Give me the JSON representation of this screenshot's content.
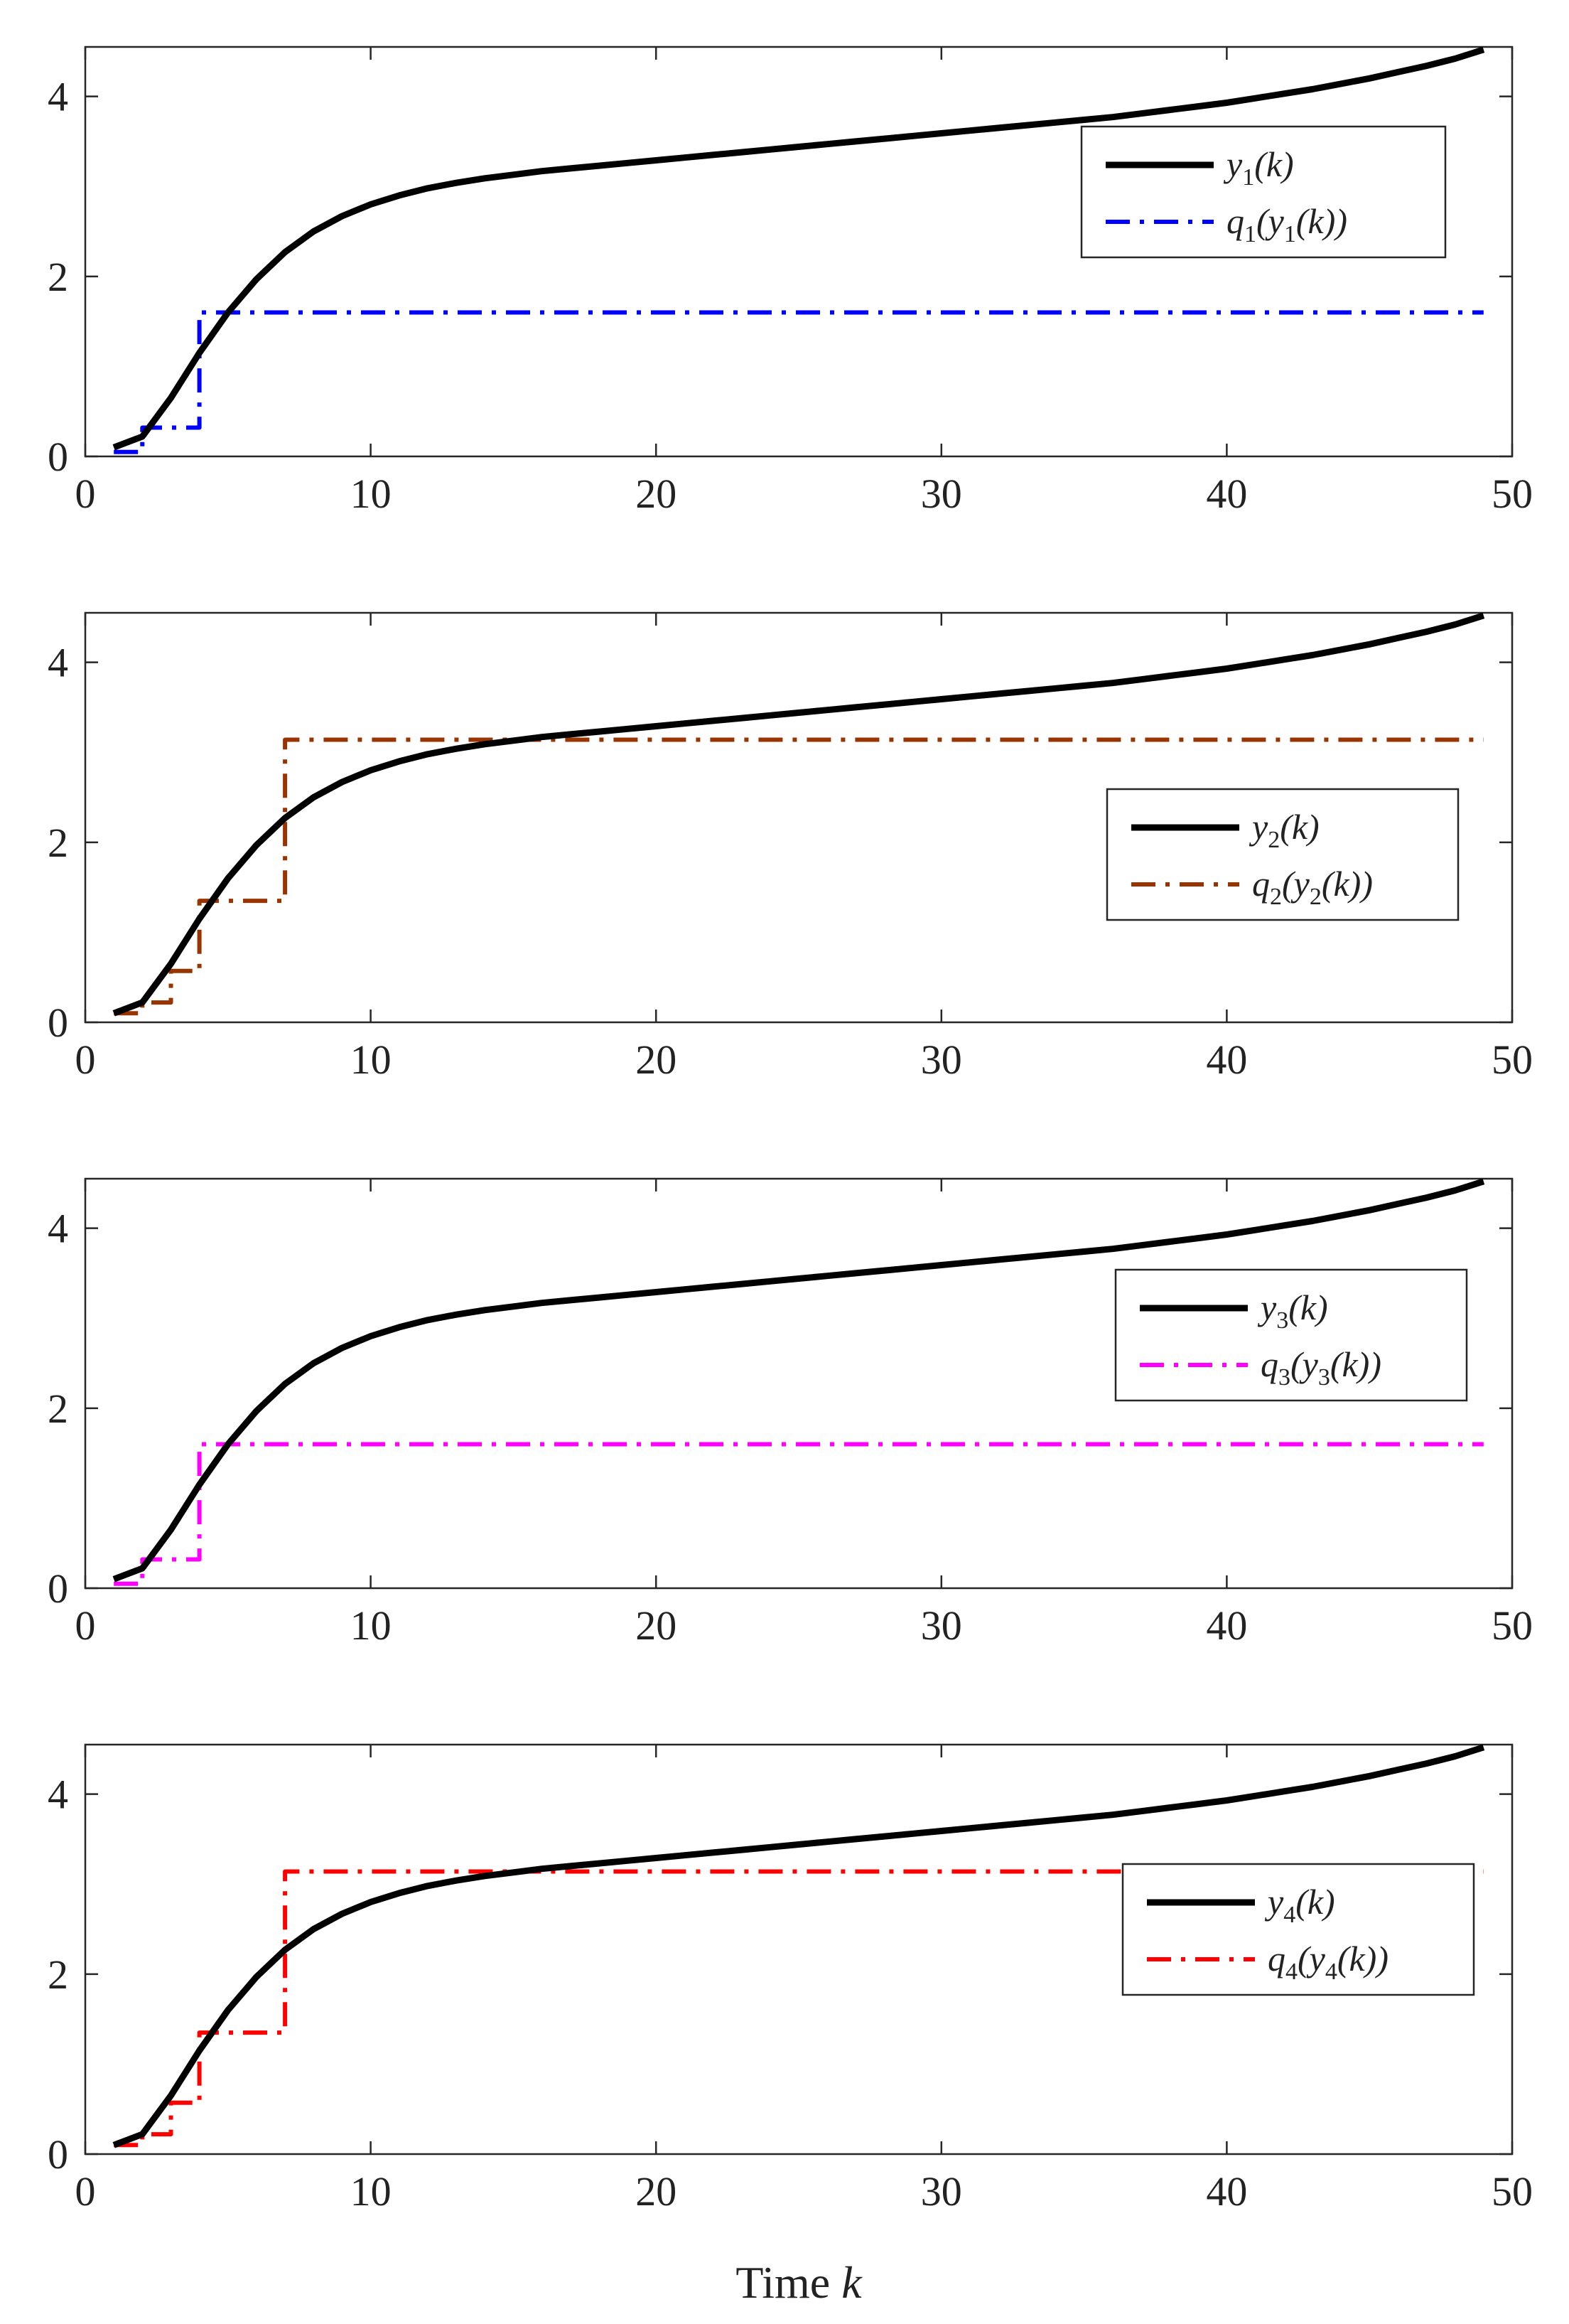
{
  "chart_data": [
    {
      "type": "line",
      "title": "",
      "xlabel": "",
      "ylabel": "",
      "xlim": [
        0,
        50
      ],
      "ylim": [
        0,
        4.55
      ],
      "xticks": [
        "0",
        "10",
        "20",
        "30",
        "40",
        "50"
      ],
      "yticks": [
        "0",
        "2",
        "4"
      ],
      "legend_position": "top-right",
      "series": [
        {
          "name": "y1(k)",
          "color": "#000000",
          "style": "solid",
          "x": [
            1,
            2,
            3,
            4,
            5,
            6,
            7,
            8,
            9,
            10,
            11,
            12,
            13,
            14,
            15,
            16,
            17,
            18,
            19,
            20,
            21,
            22,
            23,
            24,
            25,
            26,
            27,
            28,
            29,
            30,
            31,
            32,
            33,
            34,
            35,
            36,
            37,
            38,
            39,
            40,
            41,
            42,
            43,
            44,
            45,
            46,
            47,
            48,
            49
          ],
          "values": [
            0.1,
            0.22,
            0.65,
            1.15,
            1.6,
            1.97,
            2.27,
            2.5,
            2.67,
            2.8,
            2.9,
            2.98,
            3.04,
            3.09,
            3.13,
            3.17,
            3.2,
            3.23,
            3.26,
            3.29,
            3.32,
            3.35,
            3.38,
            3.41,
            3.44,
            3.47,
            3.5,
            3.53,
            3.56,
            3.59,
            3.62,
            3.65,
            3.68,
            3.71,
            3.74,
            3.77,
            3.81,
            3.85,
            3.89,
            3.93,
            3.98,
            4.03,
            4.08,
            4.14,
            4.2,
            4.27,
            4.34,
            4.42,
            4.52
          ]
        },
        {
          "name": "q1(y1(k))",
          "color": "#0000ff",
          "style": "dashdot",
          "x": [
            1,
            2,
            2,
            4,
            4,
            49
          ],
          "values": [
            0.05,
            0.05,
            0.32,
            0.32,
            1.6,
            1.6
          ]
        }
      ],
      "legend": [
        {
          "label": "y1(k)",
          "base": "y",
          "sub": "1",
          "rest": "(k)"
        },
        {
          "label": "q1(y1(k))",
          "base": "q",
          "sub": "1",
          "mid": "(y",
          "sub2": "1",
          "rest": "(k))"
        }
      ]
    },
    {
      "type": "line",
      "title": "",
      "xlabel": "",
      "ylabel": "",
      "xlim": [
        0,
        50
      ],
      "ylim": [
        0,
        4.55
      ],
      "xticks": [
        "0",
        "10",
        "20",
        "30",
        "40",
        "50"
      ],
      "yticks": [
        "0",
        "2",
        "4"
      ],
      "legend_position": "center-right",
      "series": [
        {
          "name": "y2(k)",
          "color": "#000000",
          "style": "solid",
          "x": [
            1,
            2,
            3,
            4,
            5,
            6,
            7,
            8,
            9,
            10,
            11,
            12,
            13,
            14,
            15,
            16,
            17,
            18,
            19,
            20,
            21,
            22,
            23,
            24,
            25,
            26,
            27,
            28,
            29,
            30,
            31,
            32,
            33,
            34,
            35,
            36,
            37,
            38,
            39,
            40,
            41,
            42,
            43,
            44,
            45,
            46,
            47,
            48,
            49
          ],
          "values": [
            0.1,
            0.22,
            0.65,
            1.15,
            1.6,
            1.97,
            2.27,
            2.5,
            2.67,
            2.8,
            2.9,
            2.98,
            3.04,
            3.09,
            3.13,
            3.17,
            3.2,
            3.23,
            3.26,
            3.29,
            3.32,
            3.35,
            3.38,
            3.41,
            3.44,
            3.47,
            3.5,
            3.53,
            3.56,
            3.59,
            3.62,
            3.65,
            3.68,
            3.71,
            3.74,
            3.77,
            3.81,
            3.85,
            3.89,
            3.93,
            3.98,
            4.03,
            4.08,
            4.14,
            4.2,
            4.27,
            4.34,
            4.42,
            4.52
          ]
        },
        {
          "name": "q2(y2(k))",
          "color": "#993300",
          "style": "dashdot",
          "x": [
            1,
            2,
            2,
            3,
            3,
            4,
            4,
            7,
            7,
            49
          ],
          "values": [
            0.1,
            0.1,
            0.22,
            0.22,
            0.57,
            0.57,
            1.35,
            1.35,
            3.14,
            3.14
          ]
        }
      ],
      "legend": [
        {
          "label": "y2(k)",
          "base": "y",
          "sub": "2",
          "rest": "(k)"
        },
        {
          "label": "q2(y2(k))",
          "base": "q",
          "sub": "2",
          "mid": "(y",
          "sub2": "2",
          "rest": "(k))"
        }
      ]
    },
    {
      "type": "line",
      "title": "",
      "xlabel": "",
      "ylabel": "",
      "xlim": [
        0,
        50
      ],
      "ylim": [
        0,
        4.55
      ],
      "xticks": [
        "0",
        "10",
        "20",
        "30",
        "40",
        "50"
      ],
      "yticks": [
        "0",
        "2",
        "4"
      ],
      "legend_position": "top-right",
      "series": [
        {
          "name": "y3(k)",
          "color": "#000000",
          "style": "solid",
          "x": [
            1,
            2,
            3,
            4,
            5,
            6,
            7,
            8,
            9,
            10,
            11,
            12,
            13,
            14,
            15,
            16,
            17,
            18,
            19,
            20,
            21,
            22,
            23,
            24,
            25,
            26,
            27,
            28,
            29,
            30,
            31,
            32,
            33,
            34,
            35,
            36,
            37,
            38,
            39,
            40,
            41,
            42,
            43,
            44,
            45,
            46,
            47,
            48,
            49
          ],
          "values": [
            0.1,
            0.22,
            0.65,
            1.15,
            1.6,
            1.97,
            2.27,
            2.5,
            2.67,
            2.8,
            2.9,
            2.98,
            3.04,
            3.09,
            3.13,
            3.17,
            3.2,
            3.23,
            3.26,
            3.29,
            3.32,
            3.35,
            3.38,
            3.41,
            3.44,
            3.47,
            3.5,
            3.53,
            3.56,
            3.59,
            3.62,
            3.65,
            3.68,
            3.71,
            3.74,
            3.77,
            3.81,
            3.85,
            3.89,
            3.93,
            3.98,
            4.03,
            4.08,
            4.14,
            4.2,
            4.27,
            4.34,
            4.42,
            4.52
          ]
        },
        {
          "name": "q3(y3(k))",
          "color": "#ff00ff",
          "style": "dashdot",
          "x": [
            1,
            2,
            2,
            4,
            4,
            49
          ],
          "values": [
            0.05,
            0.05,
            0.32,
            0.32,
            1.6,
            1.6
          ]
        }
      ],
      "legend": [
        {
          "label": "y3(k)",
          "base": "y",
          "sub": "3",
          "rest": "(k)"
        },
        {
          "label": "q3(y3(k))",
          "base": "q",
          "sub": "3",
          "mid": "(y",
          "sub2": "3",
          "rest": "(k))"
        }
      ]
    },
    {
      "type": "line",
      "title": "",
      "xlabel": "Time k",
      "ylabel": "",
      "xlim": [
        0,
        50
      ],
      "ylim": [
        0,
        4.55
      ],
      "xticks": [
        "0",
        "10",
        "20",
        "30",
        "40",
        "50"
      ],
      "yticks": [
        "0",
        "2",
        "4"
      ],
      "legend_position": "center-right",
      "series": [
        {
          "name": "y4(k)",
          "color": "#000000",
          "style": "solid",
          "x": [
            1,
            2,
            3,
            4,
            5,
            6,
            7,
            8,
            9,
            10,
            11,
            12,
            13,
            14,
            15,
            16,
            17,
            18,
            19,
            20,
            21,
            22,
            23,
            24,
            25,
            26,
            27,
            28,
            29,
            30,
            31,
            32,
            33,
            34,
            35,
            36,
            37,
            38,
            39,
            40,
            41,
            42,
            43,
            44,
            45,
            46,
            47,
            48,
            49
          ],
          "values": [
            0.1,
            0.22,
            0.65,
            1.15,
            1.6,
            1.97,
            2.27,
            2.5,
            2.67,
            2.8,
            2.9,
            2.98,
            3.04,
            3.09,
            3.13,
            3.17,
            3.2,
            3.23,
            3.26,
            3.29,
            3.32,
            3.35,
            3.38,
            3.41,
            3.44,
            3.47,
            3.5,
            3.53,
            3.56,
            3.59,
            3.62,
            3.65,
            3.68,
            3.71,
            3.74,
            3.77,
            3.81,
            3.85,
            3.89,
            3.93,
            3.98,
            4.03,
            4.08,
            4.14,
            4.2,
            4.27,
            4.34,
            4.42,
            4.52
          ]
        },
        {
          "name": "q4(y4(k))",
          "color": "#ff0000",
          "style": "dashdot",
          "x": [
            1,
            2,
            2,
            3,
            3,
            4,
            4,
            7,
            7,
            49
          ],
          "values": [
            0.1,
            0.1,
            0.22,
            0.22,
            0.57,
            0.57,
            1.35,
            1.35,
            3.14,
            3.14
          ]
        }
      ],
      "legend": [
        {
          "label": "y4(k)",
          "base": "y",
          "sub": "4",
          "rest": "(k)"
        },
        {
          "label": "q4(y4(k))",
          "base": "q",
          "sub": "4",
          "mid": "(y",
          "sub2": "4",
          "rest": "(k))"
        }
      ]
    }
  ]
}
